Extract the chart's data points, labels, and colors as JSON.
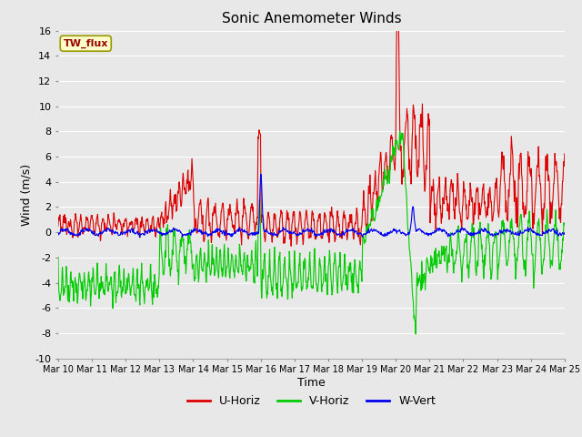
{
  "title": "Sonic Anemometer Winds",
  "xlabel": "Time",
  "ylabel": "Wind (m/s)",
  "ylim": [
    -10,
    16
  ],
  "yticks": [
    -10,
    -8,
    -6,
    -4,
    -2,
    0,
    2,
    4,
    6,
    8,
    10,
    12,
    14,
    16
  ],
  "xtick_labels": [
    "Mar 10",
    "Mar 11",
    "Mar 12",
    "Mar 13",
    "Mar 14",
    "Mar 15",
    "Mar 16",
    "Mar 17",
    "Mar 18",
    "Mar 19",
    "Mar 20",
    "Mar 21",
    "Mar 22",
    "Mar 23",
    "Mar 24",
    "Mar 25"
  ],
  "legend_labels": [
    "U-Horiz",
    "V-Horiz",
    "W-Vert"
  ],
  "u_color": "#dd0000",
  "v_color": "#00cc00",
  "w_color": "#0000ee",
  "bg_color": "#e8e8e8",
  "annotation_text": "TW_flux",
  "annotation_bg": "#ffffcc",
  "annotation_border": "#999900",
  "grid_color": "#ffffff",
  "line_width": 0.8,
  "n_days": 15,
  "seed": 12345
}
